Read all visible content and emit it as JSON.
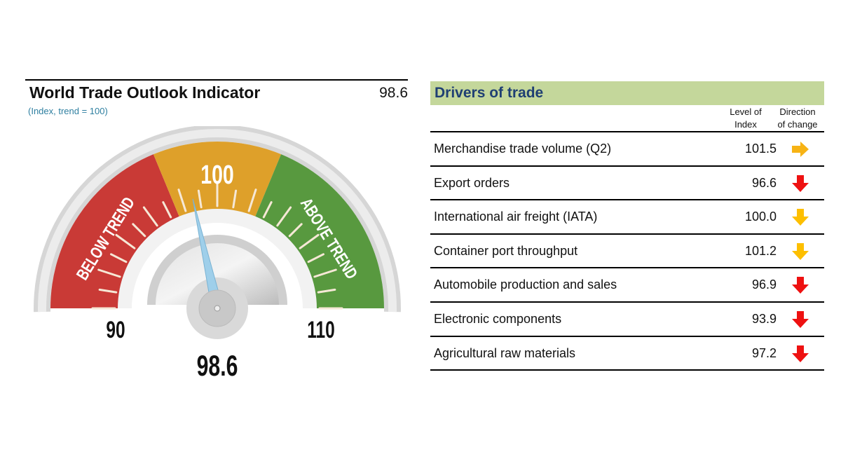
{
  "indicator": {
    "title": "World Trade Outlook Indicator",
    "value": "98.6",
    "subtitle": "(Index, trend = 100)"
  },
  "chart_data": {
    "type": "gauge",
    "value": 98.6,
    "range": [
      90,
      110
    ],
    "center_label": "100",
    "min_label": "90",
    "max_label": "110",
    "value_label": "98.6",
    "zones": [
      {
        "name": "BELOW TREND",
        "from": 90,
        "to": 97.5,
        "color": "#c93a36"
      },
      {
        "name": "",
        "from": 97.5,
        "to": 102.5,
        "color": "#dea02a"
      },
      {
        "name": "ABOVE TREND",
        "from": 102.5,
        "to": 110,
        "color": "#58993f"
      }
    ]
  },
  "drivers": {
    "title": "Drivers of trade",
    "col_level": [
      "Level of",
      "Index"
    ],
    "col_direction": [
      "Direction",
      "of change"
    ],
    "colors": {
      "right": "#f7b315",
      "down_yellow": "#fdbf00",
      "down_red": "#ee1111"
    },
    "rows": [
      {
        "label": "Merchandise trade volume (Q2)",
        "value": "101.5",
        "direction": "right"
      },
      {
        "label": "Export orders",
        "value": "96.6",
        "direction": "down_red"
      },
      {
        "label": "International air freight (IATA)",
        "value": "100.0",
        "direction": "down_yellow"
      },
      {
        "label": "Container port throughput",
        "value": "101.2",
        "direction": "down_yellow"
      },
      {
        "label": "Automobile production and sales",
        "value": "96.9",
        "direction": "down_red"
      },
      {
        "label": "Electronic components",
        "value": "93.9",
        "direction": "down_red"
      },
      {
        "label": "Agricultural raw materials",
        "value": "97.2",
        "direction": "down_red"
      }
    ]
  }
}
